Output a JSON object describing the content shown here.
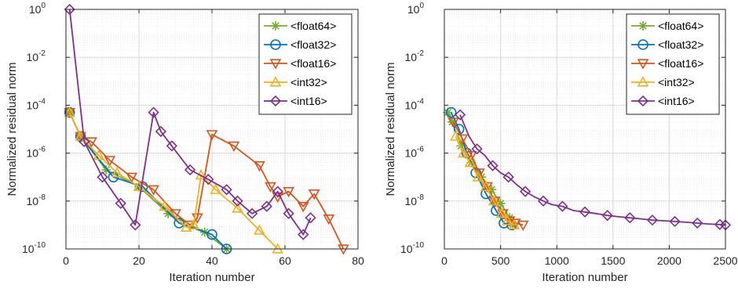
{
  "chart_data": [
    {
      "type": "line",
      "xlabel": "Iteration number",
      "ylabel": "Normalized residual norm",
      "xlim": [
        0,
        80
      ],
      "ylim": [
        1e-10,
        1
      ],
      "yscale": "log",
      "grid": true,
      "legend_position": "top-right",
      "xticks": [
        "0",
        "20",
        "40",
        "60",
        "80"
      ],
      "yticks": [
        {
          "base": "10",
          "exp": "-10"
        },
        {
          "base": "10",
          "exp": "-8"
        },
        {
          "base": "10",
          "exp": "-6"
        },
        {
          "base": "10",
          "exp": "-4"
        },
        {
          "base": "10",
          "exp": "-2"
        },
        {
          "base": "10",
          "exp": "0"
        }
      ],
      "series": [
        {
          "name": "<float64>",
          "color": "#77AC30",
          "marker": "star",
          "x": [
            1,
            4,
            11,
            20,
            28,
            38,
            44
          ],
          "y": [
            5e-05,
            5e-06,
            2e-07,
            4e-08,
            3e-09,
            5e-10,
            1e-10
          ]
        },
        {
          "name": "<float32>",
          "color": "#0072BD",
          "marker": "circle",
          "x": [
            1,
            4,
            13,
            21,
            31,
            40,
            44
          ],
          "y": [
            5e-05,
            5e-06,
            1e-07,
            4e-08,
            1.2e-09,
            4e-10,
            1e-10
          ]
        },
        {
          "name": "<float16>",
          "color": "#D95319",
          "marker": "triangle-down",
          "x": [
            1,
            4,
            7,
            12,
            18,
            24,
            30,
            34,
            36,
            40,
            46,
            53,
            56,
            58,
            61,
            65,
            68,
            72,
            76
          ],
          "y": [
            5e-05,
            5e-06,
            3e-06,
            5e-07,
            1e-07,
            3e-08,
            3e-09,
            1e-09,
            2e-09,
            6e-06,
            2e-06,
            3e-07,
            4e-08,
            1.5e-08,
            2.5e-08,
            6e-09,
            2e-08,
            1.8e-09,
            1e-10
          ]
        },
        {
          "name": "<int32>",
          "color": "#EDB120",
          "marker": "triangle-up",
          "x": [
            1,
            4,
            9,
            14,
            20,
            27,
            33,
            35,
            37,
            41,
            47,
            53,
            58
          ],
          "y": [
            5e-05,
            5e-06,
            8e-07,
            1.5e-07,
            4e-08,
            6e-09,
            8e-10,
            1e-09,
            1.2e-07,
            3e-08,
            5e-09,
            6e-10,
            1e-10
          ]
        },
        {
          "name": "<int16>",
          "color": "#7E2F8E",
          "marker": "diamond",
          "x": [
            1,
            5,
            10,
            15,
            19,
            24,
            26,
            29,
            34,
            39,
            44,
            47,
            51,
            55,
            58,
            61,
            65,
            67
          ],
          "y": [
            1,
            3e-06,
            1e-07,
            8e-09,
            1e-09,
            5e-05,
            8e-06,
            2e-06,
            2e-07,
            8e-08,
            3e-08,
            1e-08,
            3e-09,
            6e-09,
            2.5e-08,
            3e-09,
            4e-10,
            2e-09
          ]
        }
      ]
    },
    {
      "type": "line",
      "xlabel": "Iteration number",
      "ylabel": "Normalized residual norm",
      "xlim": [
        0,
        2500
      ],
      "ylim": [
        1e-10,
        1
      ],
      "yscale": "log",
      "grid": true,
      "legend_position": "top-right",
      "xticks": [
        "0",
        "500",
        "1000",
        "1500",
        "2000",
        "2500"
      ],
      "yticks": [
        {
          "base": "10",
          "exp": "-10"
        },
        {
          "base": "10",
          "exp": "-8"
        },
        {
          "base": "10",
          "exp": "-6"
        },
        {
          "base": "10",
          "exp": "-4"
        },
        {
          "base": "10",
          "exp": "-2"
        },
        {
          "base": "10",
          "exp": "0"
        }
      ],
      "series": [
        {
          "name": "<float64>",
          "color": "#77AC30",
          "marker": "star",
          "x": [
            30,
            70,
            150,
            240,
            330,
            420,
            500,
            580,
            610
          ],
          "y": [
            5e-05,
            2e-05,
            2e-06,
            4e-07,
            1e-07,
            3e-08,
            8e-09,
            2e-09,
            1e-09
          ]
        },
        {
          "name": "<float32>",
          "color": "#0072BD",
          "marker": "circle",
          "x": [
            60,
            130,
            200,
            280,
            370,
            460,
            530,
            600
          ],
          "y": [
            5e-05,
            1e-05,
            1e-06,
            1.5e-07,
            2e-08,
            4e-09,
            1.2e-09,
            1e-09
          ]
        },
        {
          "name": "<float16>",
          "color": "#D95319",
          "marker": "triangle-down",
          "x": [
            80,
            160,
            240,
            310,
            380,
            450,
            520,
            580,
            630,
            700
          ],
          "y": [
            2e-05,
            4e-06,
            8e-07,
            1.5e-07,
            4e-08,
            1e-08,
            3e-09,
            1.5e-09,
            1.2e-09,
            1e-09
          ]
        },
        {
          "name": "<int32>",
          "color": "#EDB120",
          "marker": "triangle-up",
          "x": [
            100,
            170,
            230,
            300,
            370,
            440,
            510,
            560,
            620
          ],
          "y": [
            5e-06,
            1e-06,
            4e-07,
            1e-07,
            4e-08,
            1e-08,
            3e-09,
            1.5e-09,
            1e-09
          ]
        },
        {
          "name": "<int16>",
          "color": "#7E2F8E",
          "marker": "diamond",
          "x": [
            140,
            220,
            290,
            360,
            430,
            500,
            570,
            640,
            720,
            800,
            880,
            960,
            1050,
            1150,
            1250,
            1350,
            1450,
            1550,
            1650,
            1750,
            1850,
            1950,
            2050,
            2150,
            2250,
            2350,
            2450,
            2500
          ],
          "y": [
            4e-05,
            5e-06,
            1.5e-06,
            8e-07,
            3e-07,
            1.5e-07,
            1e-07,
            5e-08,
            2.5e-08,
            1.5e-08,
            1e-08,
            7e-09,
            6e-09,
            4e-09,
            3.5e-09,
            3e-09,
            2.5e-09,
            2.2e-09,
            2e-09,
            1.8e-09,
            1.6e-09,
            1.5e-09,
            1.4e-09,
            1.3e-09,
            1.2e-09,
            1.1e-09,
            1.05e-09,
            1e-09
          ]
        }
      ]
    }
  ]
}
